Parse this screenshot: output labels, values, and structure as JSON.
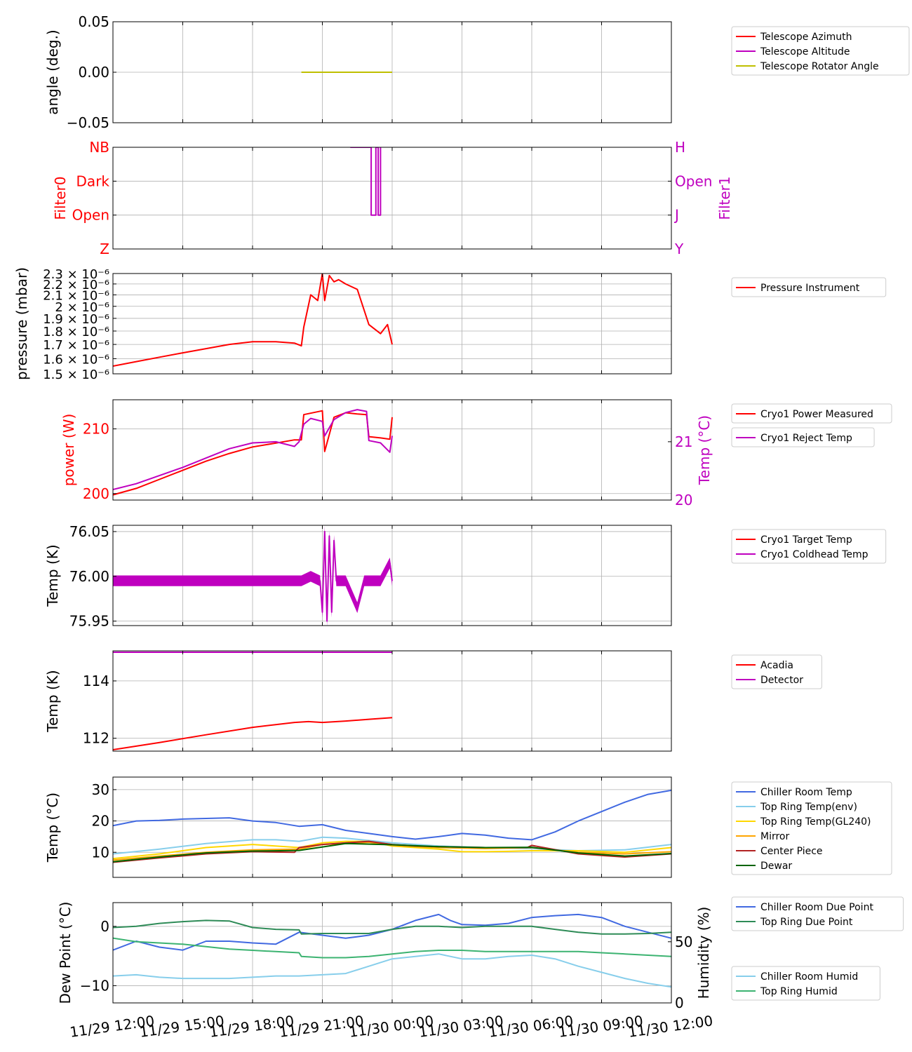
{
  "x_axis": {
    "ticks": [
      "11/29 12:00",
      "11/29 15:00",
      "11/29 18:00",
      "11/29 21:00",
      "11/30 00:00",
      "11/30 03:00",
      "11/30 06:00",
      "11/30 09:00",
      "11/30 12:00"
    ],
    "range_hours": [
      0,
      24
    ]
  },
  "chart_data": [
    {
      "type": "line",
      "ylabel": "angle (deg.)",
      "ylim": [
        -0.05,
        0.05
      ],
      "yticks": [
        "0.05",
        "0.00",
        "−0.05"
      ],
      "ytick_values": [
        0.05,
        0.0,
        -0.05
      ],
      "legend": "right",
      "series": [
        {
          "name": "Telescope Azimuth",
          "color": "#ff0000",
          "x": [],
          "y": []
        },
        {
          "name": "Telescope Altitude",
          "color": "#bf00bf",
          "x": [],
          "y": []
        },
        {
          "name": "Telescope Rotator Angle",
          "color": "#bfbf00",
          "x": [
            8.1,
            12.0
          ],
          "y": [
            0.0,
            0.0
          ]
        }
      ]
    },
    {
      "type": "line",
      "ylabel": "Filter0",
      "ylabel_color": "#ff0000",
      "y2label": "Filter1",
      "y2label_color": "#bf00bf",
      "ylim": [
        0,
        3
      ],
      "yticks": [
        "NB",
        "Dark",
        "Open",
        "Z"
      ],
      "ytick_values": [
        3,
        2,
        1,
        0
      ],
      "y2ticks": [
        "H",
        "Open",
        "J",
        "Y"
      ],
      "series": [
        {
          "name": "Filter1",
          "color": "#bf00bf",
          "x": [
            10.2,
            11.1,
            11.1,
            11.3,
            11.3,
            11.4,
            11.4,
            11.5,
            11.5
          ],
          "y": [
            3,
            3,
            1,
            1,
            3,
            3,
            1,
            1,
            3
          ]
        }
      ]
    },
    {
      "type": "line",
      "ylabel": "pressure (mbar)",
      "ylim": [
        1.5e-06,
        2.3e-06
      ],
      "yticks": [
        "2.3 × 10⁻⁶",
        "2.2 × 10⁻⁶",
        "2.1 × 10⁻⁶",
        "2 × 10⁻⁶",
        "1.9 × 10⁻⁶",
        "1.8 × 10⁻⁶",
        "1.7 × 10⁻⁶",
        "1.6 × 10⁻⁶",
        "1.5 × 10⁻⁶"
      ],
      "ytick_values": [
        2.3e-06,
        2.2e-06,
        2.1e-06,
        2e-06,
        1.9e-06,
        1.8e-06,
        1.7e-06,
        1.6e-06,
        1.5e-06
      ],
      "log": true,
      "legend": "right",
      "series": [
        {
          "name": "Pressure Instrument",
          "color": "#ff0000",
          "x": [
            0,
            1,
            2,
            3,
            4,
            5,
            6,
            7,
            7.8,
            8.1,
            8.2,
            8.5,
            8.8,
            9.0,
            9.1,
            9.3,
            9.5,
            9.7,
            10.0,
            10.5,
            11.0,
            11.5,
            11.8,
            12.0
          ],
          "y": [
            1.55e-06,
            1.58e-06,
            1.61e-06,
            1.64e-06,
            1.67e-06,
            1.7e-06,
            1.72e-06,
            1.72e-06,
            1.71e-06,
            1.69e-06,
            1.83e-06,
            2.1e-06,
            2.05e-06,
            2.3e-06,
            2.05e-06,
            2.28e-06,
            2.22e-06,
            2.24e-06,
            2.2e-06,
            2.15e-06,
            1.85e-06,
            1.78e-06,
            1.85e-06,
            1.7e-06
          ]
        }
      ]
    },
    {
      "type": "line",
      "ylabel": "power (W)",
      "ylabel_color": "#ff0000",
      "y2label": "Temp (°C)",
      "y2label_color": "#bf00bf",
      "ylim": [
        199,
        214.5
      ],
      "yticks": [
        "210",
        "200"
      ],
      "ytick_values": [
        210,
        200
      ],
      "y2lim": [
        20,
        21.72
      ],
      "y2ticks": [
        "21",
        "20"
      ],
      "y2tick_values": [
        21,
        20
      ],
      "legend": "right",
      "series": [
        {
          "name": "Cryo1 Power Measured",
          "color": "#ff0000",
          "axis": "left",
          "x": [
            0,
            1,
            2,
            3,
            4,
            5,
            6,
            7,
            7.8,
            8.1,
            8.2,
            9.0,
            9.1,
            9.5,
            10.0,
            10.5,
            10.9,
            11.0,
            11.5,
            11.9,
            12.0
          ],
          "y": [
            199.8,
            200.8,
            202.2,
            203.6,
            205.0,
            206.2,
            207.2,
            207.8,
            208.3,
            208.3,
            212.2,
            212.8,
            206.5,
            211.8,
            212.5,
            212.3,
            212.2,
            208.8,
            208.6,
            208.4,
            211.8
          ]
        },
        {
          "name": "Cryo1 Reject Temp",
          "color": "#bf00bf",
          "axis": "right",
          "x": [
            0,
            1,
            2,
            3,
            4,
            5,
            6,
            7,
            7.8,
            8.0,
            8.2,
            8.5,
            9.0,
            9.1,
            9.5,
            10.0,
            10.5,
            10.9,
            11.0,
            11.5,
            11.9,
            12.0
          ],
          "y": [
            20.18,
            20.28,
            20.42,
            20.56,
            20.72,
            20.88,
            20.98,
            21.0,
            20.92,
            21.0,
            21.3,
            21.4,
            21.35,
            21.1,
            21.38,
            21.5,
            21.55,
            21.52,
            21.02,
            20.98,
            20.82,
            21.1
          ]
        }
      ]
    },
    {
      "type": "line",
      "ylabel": "Temp (K)",
      "ylim": [
        75.945,
        76.057
      ],
      "yticks": [
        "76.05",
        "76.00",
        "75.95"
      ],
      "ytick_values": [
        76.05,
        76.0,
        75.95
      ],
      "legend": "right",
      "series": [
        {
          "name": "Cryo1 Target Temp",
          "color": "#ff0000",
          "x": [],
          "y": []
        },
        {
          "name": "Cryo1 Coldhead Temp",
          "color": "#bf00bf",
          "x": [
            0,
            7.8,
            8.1,
            8.5,
            8.9,
            9.0,
            9.1,
            9.2,
            9.3,
            9.4,
            9.5,
            9.6,
            10.0,
            10.5,
            10.8,
            11.0,
            11.5,
            11.9,
            12.0
          ],
          "y": [
            75.995,
            75.995,
            75.995,
            76.0,
            75.995,
            75.96,
            76.05,
            75.95,
            76.045,
            75.96,
            76.04,
            75.995,
            75.995,
            75.965,
            75.995,
            75.995,
            75.995,
            76.015,
            75.995
          ],
          "band": 0.006
        }
      ]
    },
    {
      "type": "line",
      "ylabel": "Temp (K)",
      "ylim": [
        111.55,
        115.05
      ],
      "yticks": [
        "114",
        "112"
      ],
      "ytick_values": [
        114,
        112
      ],
      "legend": "right",
      "series": [
        {
          "name": "Acadia",
          "color": "#ff0000",
          "x": [
            0,
            2,
            4,
            6,
            7.8,
            8.4,
            9.0,
            10.0,
            11.0,
            12.0
          ],
          "y": [
            111.6,
            111.85,
            112.12,
            112.38,
            112.55,
            112.58,
            112.55,
            112.6,
            112.66,
            112.72
          ]
        },
        {
          "name": "Detector",
          "color": "#bf00bf",
          "x": [
            0,
            12.0
          ],
          "y": [
            115.0,
            115.0
          ]
        }
      ]
    },
    {
      "type": "line",
      "ylabel": "Temp (°C)",
      "ylim": [
        2,
        34
      ],
      "yticks": [
        "30",
        "20",
        "10"
      ],
      "ytick_values": [
        30,
        20,
        10
      ],
      "legend": "right",
      "series": [
        {
          "name": "Chiller Room Temp",
          "color": "#4169e1",
          "x": [
            0,
            1,
            2,
            3,
            4,
            5,
            6,
            7,
            8,
            9,
            10,
            11,
            12,
            13,
            14,
            15,
            16,
            17,
            18,
            19,
            20,
            21,
            22,
            23,
            24
          ],
          "y": [
            18.5,
            20.0,
            20.2,
            20.6,
            20.8,
            21.0,
            20.0,
            19.5,
            18.3,
            18.8,
            17.0,
            16.0,
            15.0,
            14.2,
            15.0,
            16.0,
            15.5,
            14.5,
            14.0,
            16.5,
            20.0,
            23.0,
            26.0,
            28.5,
            29.8
          ]
        },
        {
          "name": "Top Ring Temp(env)",
          "color": "#87ceeb",
          "x": [
            0,
            2,
            4,
            6,
            7,
            8,
            9,
            10,
            12,
            14,
            16,
            18,
            20,
            22,
            24
          ],
          "y": [
            9.5,
            11.0,
            12.8,
            14.0,
            14.0,
            13.5,
            14.8,
            14.5,
            13.0,
            12.0,
            11.5,
            11.2,
            10.5,
            10.8,
            12.5
          ]
        },
        {
          "name": "Top Ring Temp(GL240)",
          "color": "#ffd700",
          "x": [
            0,
            2,
            4,
            6,
            8,
            9,
            10,
            11,
            12,
            14,
            15,
            16,
            17,
            18,
            20,
            22,
            24
          ],
          "y": [
            8.0,
            9.5,
            11.5,
            12.5,
            11.5,
            13.0,
            13.5,
            13.5,
            12.0,
            11.0,
            10.2,
            10.2,
            10.3,
            10.5,
            10.5,
            10.0,
            11.5
          ]
        },
        {
          "name": "Mirror",
          "color": "#ffa500",
          "x": [
            0,
            2,
            4,
            6,
            8,
            9,
            10,
            11,
            12,
            14,
            16,
            18,
            20,
            22,
            24
          ],
          "y": [
            7.5,
            8.8,
            10.0,
            10.8,
            11.0,
            12.5,
            12.8,
            13.2,
            12.2,
            11.5,
            11.2,
            11.5,
            10.0,
            9.5,
            10.2
          ]
        },
        {
          "name": "Center Piece",
          "color": "#b22222",
          "x": [
            0,
            2,
            4,
            6,
            7.8,
            8,
            9,
            10,
            11,
            12,
            13,
            14,
            16,
            17.8,
            18,
            20,
            22,
            24
          ],
          "y": [
            6.8,
            8.2,
            9.5,
            10.2,
            10.0,
            11.5,
            12.5,
            13.0,
            13.5,
            12.5,
            12.0,
            11.8,
            11.5,
            11.5,
            12.2,
            9.5,
            8.5,
            9.5
          ]
        },
        {
          "name": "Dewar",
          "color": "#006400",
          "x": [
            0,
            2,
            4,
            6,
            8,
            10,
            12,
            14,
            16,
            18,
            20,
            22,
            24
          ],
          "y": [
            7.0,
            8.5,
            9.8,
            10.4,
            10.6,
            12.8,
            12.4,
            11.8,
            11.5,
            11.6,
            9.8,
            8.8,
            9.6
          ]
        }
      ]
    },
    {
      "type": "line",
      "ylabel": "Dew Point (°C)",
      "y2label": "Humidity (%)",
      "ylim": [
        -12.9,
        4.0
      ],
      "yticks": [
        "0",
        "−10"
      ],
      "ytick_values": [
        0,
        -10
      ],
      "y2lim": [
        0,
        82
      ],
      "y2ticks": [
        "50",
        "0"
      ],
      "y2tick_values": [
        50,
        0
      ],
      "legend": "right",
      "series": [
        {
          "name": "Chiller Room Due Point",
          "color": "#4169e1",
          "axis": "left",
          "x": [
            0,
            1,
            2,
            3,
            4,
            5,
            6,
            7,
            8,
            9,
            10,
            11,
            12,
            13,
            14,
            14.5,
            15,
            16,
            17,
            18,
            19,
            20,
            21,
            22,
            23,
            24
          ],
          "y": [
            -4.0,
            -2.5,
            -3.5,
            -4.0,
            -2.5,
            -2.5,
            -2.8,
            -3.0,
            -1.0,
            -1.5,
            -2.0,
            -1.5,
            -0.5,
            1.0,
            2.0,
            1.0,
            0.3,
            0.2,
            0.5,
            1.5,
            1.8,
            2.0,
            1.5,
            0.0,
            -1.0,
            -2.0
          ]
        },
        {
          "name": "Top Ring Due Point",
          "color": "#2e8b57",
          "axis": "left",
          "x": [
            0,
            1,
            2,
            3,
            4,
            5,
            6,
            7,
            8,
            8.1,
            9,
            10,
            11,
            12,
            13,
            14,
            15,
            16,
            17,
            18,
            19,
            20,
            21,
            22,
            23,
            24
          ],
          "y": [
            -0.2,
            0.0,
            0.5,
            0.8,
            1.0,
            0.9,
            -0.2,
            -0.5,
            -0.6,
            -1.3,
            -1.2,
            -1.2,
            -1.2,
            -0.5,
            0.0,
            0.0,
            -0.2,
            0.0,
            0.0,
            0.0,
            -0.5,
            -1.0,
            -1.3,
            -1.3,
            -1.2,
            -1.0
          ]
        },
        {
          "name": "Chiller Room Humid",
          "color": "#87ceeb",
          "axis": "right",
          "x": [
            0,
            1,
            2,
            3,
            4,
            5,
            6,
            7,
            8,
            9,
            10,
            11,
            12,
            13,
            14,
            15,
            16,
            17,
            18,
            19,
            20,
            21,
            22,
            23,
            24
          ],
          "y": [
            22,
            23,
            21,
            20,
            20,
            20,
            21,
            22,
            22,
            23,
            24,
            30,
            36,
            38,
            40,
            36,
            36,
            38,
            39,
            36,
            30,
            25,
            20,
            16,
            13
          ]
        },
        {
          "name": "Top Ring Humid",
          "color": "#3cb371",
          "axis": "right",
          "x": [
            0,
            1,
            2,
            3,
            4,
            5,
            6,
            7,
            8,
            8.1,
            9,
            10,
            11,
            12,
            13,
            14,
            15,
            16,
            17,
            18,
            19,
            20,
            21,
            22,
            23,
            24
          ],
          "y": [
            53,
            50,
            49,
            48,
            46,
            44,
            43,
            42,
            41,
            38,
            37,
            37,
            38,
            40,
            42,
            43,
            43,
            42,
            42,
            42,
            42,
            42,
            41,
            40,
            39,
            38
          ]
        }
      ]
    }
  ]
}
